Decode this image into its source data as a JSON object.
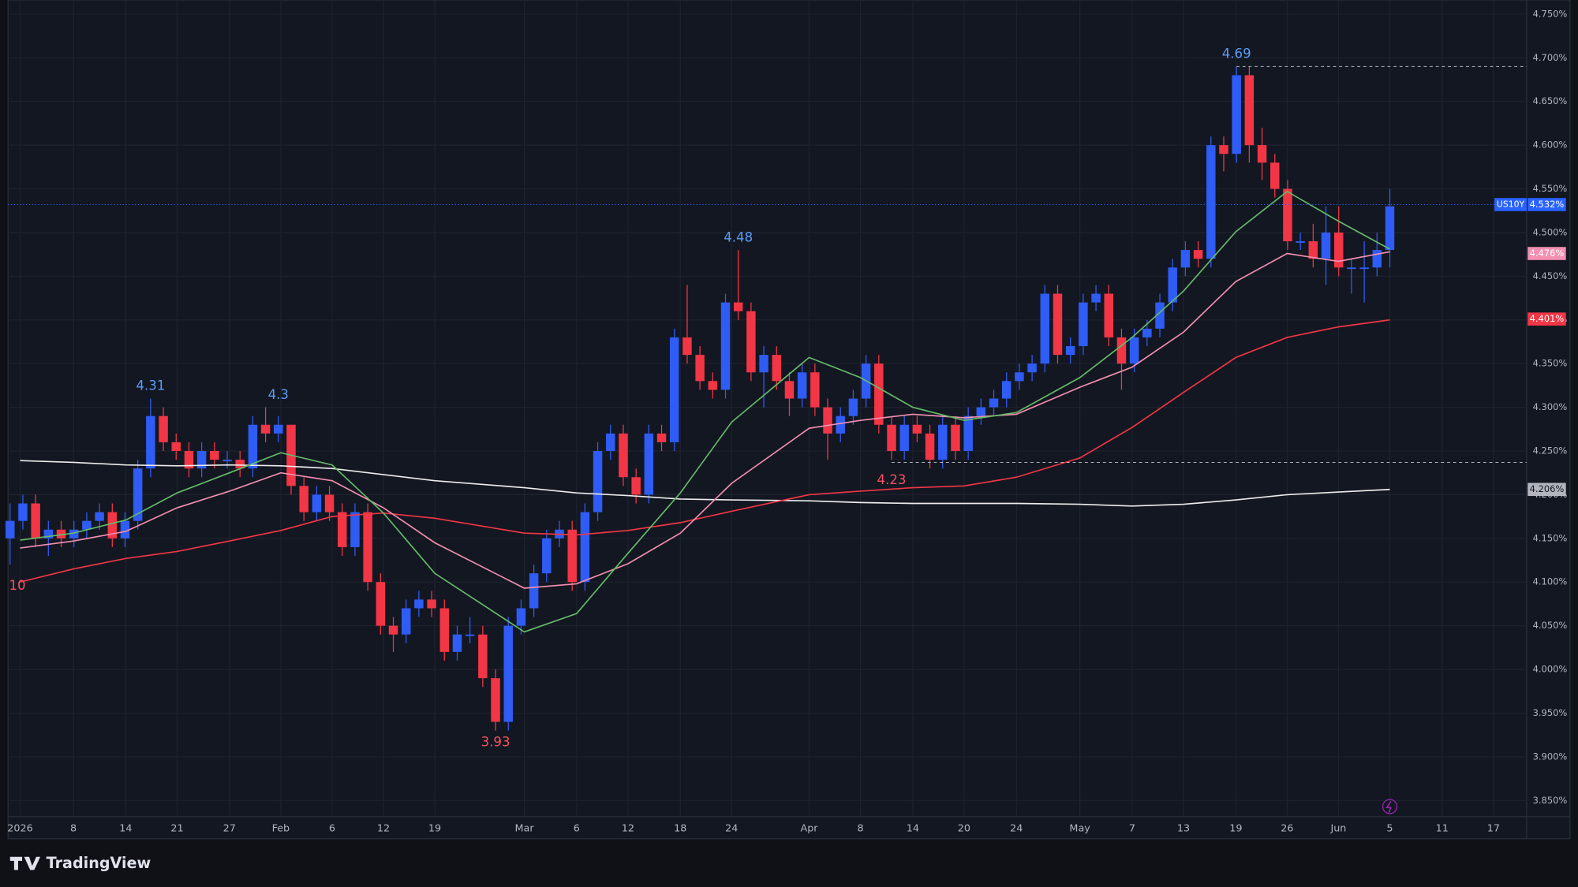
{
  "chart_data": {
    "type": "candlestick",
    "symbol": "US10Y",
    "brand": "TradingView",
    "categories": [
      "2026",
      "8",
      "14",
      "21",
      "27",
      "Feb",
      "6",
      "12",
      "19",
      "Mar",
      "6",
      "12",
      "18",
      "24",
      "Apr",
      "8",
      "14",
      "20",
      "24",
      "May",
      "7",
      "13",
      "19",
      "26",
      "Jun",
      "5",
      "11",
      "17"
    ],
    "ylim": [
      3.85,
      4.75
    ],
    "yticks": [
      {
        "value": 3.85,
        "label": "3.850%"
      },
      {
        "value": 3.9,
        "label": "3.900%"
      },
      {
        "value": 3.95,
        "label": "3.950%"
      },
      {
        "value": 4.0,
        "label": "4.000%"
      },
      {
        "value": 4.05,
        "label": "4.050%"
      },
      {
        "value": 4.1,
        "label": "4.100%"
      },
      {
        "value": 4.15,
        "label": "4.150%"
      },
      {
        "value": 4.2,
        "label": "4.200%"
      },
      {
        "value": 4.25,
        "label": "4.250%"
      },
      {
        "value": 4.3,
        "label": "4.300%"
      },
      {
        "value": 4.35,
        "label": "4.350%"
      },
      {
        "value": 4.4,
        "label": "4.400%"
      },
      {
        "value": 4.45,
        "label": "4.450%"
      },
      {
        "value": 4.5,
        "label": "4.500%"
      },
      {
        "value": 4.55,
        "label": "4.550%"
      },
      {
        "value": 4.6,
        "label": "4.600%"
      },
      {
        "value": 4.65,
        "label": "4.650%"
      },
      {
        "value": 4.7,
        "label": "4.700%"
      },
      {
        "value": 4.75,
        "label": "4.750%"
      }
    ],
    "grid": true,
    "up_color": "#2f5cf5",
    "down_color": "#f23645",
    "ohlc": [
      [
        4.15,
        4.19,
        4.12,
        4.17
      ],
      [
        4.17,
        4.2,
        4.16,
        4.19
      ],
      [
        4.19,
        4.2,
        4.14,
        4.15
      ],
      [
        4.15,
        4.17,
        4.13,
        4.16
      ],
      [
        4.16,
        4.17,
        4.14,
        4.15
      ],
      [
        4.15,
        4.17,
        4.14,
        4.16
      ],
      [
        4.16,
        4.18,
        4.15,
        4.17
      ],
      [
        4.17,
        4.19,
        4.16,
        4.18
      ],
      [
        4.18,
        4.19,
        4.14,
        4.15
      ],
      [
        4.15,
        4.18,
        4.14,
        4.17
      ],
      [
        4.17,
        4.24,
        4.16,
        4.23
      ],
      [
        4.23,
        4.31,
        4.22,
        4.29
      ],
      [
        4.29,
        4.3,
        4.25,
        4.26
      ],
      [
        4.26,
        4.27,
        4.24,
        4.25
      ],
      [
        4.25,
        4.26,
        4.22,
        4.23
      ],
      [
        4.23,
        4.26,
        4.22,
        4.25
      ],
      [
        4.25,
        4.26,
        4.23,
        4.24
      ],
      [
        4.24,
        4.25,
        4.23,
        4.24
      ],
      [
        4.24,
        4.25,
        4.22,
        4.23
      ],
      [
        4.23,
        4.29,
        4.22,
        4.28
      ],
      [
        4.28,
        4.3,
        4.26,
        4.27
      ],
      [
        4.27,
        4.29,
        4.26,
        4.28
      ],
      [
        4.28,
        4.28,
        4.2,
        4.21
      ],
      [
        4.21,
        4.22,
        4.17,
        4.18
      ],
      [
        4.18,
        4.21,
        4.17,
        4.2
      ],
      [
        4.2,
        4.21,
        4.17,
        4.18
      ],
      [
        4.18,
        4.19,
        4.13,
        4.14
      ],
      [
        4.14,
        4.19,
        4.13,
        4.18
      ],
      [
        4.18,
        4.19,
        4.09,
        4.1
      ],
      [
        4.1,
        4.11,
        4.04,
        4.05
      ],
      [
        4.05,
        4.06,
        4.02,
        4.04
      ],
      [
        4.04,
        4.08,
        4.03,
        4.07
      ],
      [
        4.07,
        4.09,
        4.06,
        4.08
      ],
      [
        4.08,
        4.09,
        4.06,
        4.07
      ],
      [
        4.07,
        4.08,
        4.01,
        4.02
      ],
      [
        4.02,
        4.05,
        4.01,
        4.04
      ],
      [
        4.04,
        4.06,
        4.03,
        4.04
      ],
      [
        4.04,
        4.05,
        3.98,
        3.99
      ],
      [
        3.99,
        4.0,
        3.93,
        3.94
      ],
      [
        3.94,
        4.06,
        3.93,
        4.05
      ],
      [
        4.05,
        4.08,
        4.04,
        4.07
      ],
      [
        4.07,
        4.12,
        4.06,
        4.11
      ],
      [
        4.11,
        4.16,
        4.1,
        4.15
      ],
      [
        4.15,
        4.17,
        4.14,
        4.16
      ],
      [
        4.16,
        4.17,
        4.09,
        4.1
      ],
      [
        4.1,
        4.19,
        4.09,
        4.18
      ],
      [
        4.18,
        4.26,
        4.17,
        4.25
      ],
      [
        4.25,
        4.28,
        4.24,
        4.27
      ],
      [
        4.27,
        4.28,
        4.21,
        4.22
      ],
      [
        4.22,
        4.23,
        4.19,
        4.2
      ],
      [
        4.2,
        4.28,
        4.19,
        4.27
      ],
      [
        4.27,
        4.28,
        4.25,
        4.26
      ],
      [
        4.26,
        4.39,
        4.25,
        4.38
      ],
      [
        4.38,
        4.44,
        4.35,
        4.36
      ],
      [
        4.36,
        4.37,
        4.32,
        4.33
      ],
      [
        4.33,
        4.34,
        4.31,
        4.32
      ],
      [
        4.32,
        4.43,
        4.31,
        4.42
      ],
      [
        4.42,
        4.48,
        4.4,
        4.41
      ],
      [
        4.41,
        4.42,
        4.33,
        4.34
      ],
      [
        4.34,
        4.37,
        4.3,
        4.36
      ],
      [
        4.36,
        4.37,
        4.32,
        4.33
      ],
      [
        4.33,
        4.34,
        4.29,
        4.31
      ],
      [
        4.31,
        4.35,
        4.3,
        4.34
      ],
      [
        4.34,
        4.35,
        4.29,
        4.3
      ],
      [
        4.3,
        4.31,
        4.24,
        4.27
      ],
      [
        4.27,
        4.3,
        4.26,
        4.29
      ],
      [
        4.29,
        4.32,
        4.28,
        4.31
      ],
      [
        4.31,
        4.36,
        4.3,
        4.35
      ],
      [
        4.35,
        4.36,
        4.27,
        4.28
      ],
      [
        4.28,
        4.29,
        4.24,
        4.25
      ],
      [
        4.25,
        4.29,
        4.24,
        4.28
      ],
      [
        4.28,
        4.29,
        4.26,
        4.27
      ],
      [
        4.27,
        4.28,
        4.23,
        4.24
      ],
      [
        4.24,
        4.29,
        4.23,
        4.28
      ],
      [
        4.28,
        4.29,
        4.24,
        4.25
      ],
      [
        4.25,
        4.3,
        4.24,
        4.29
      ],
      [
        4.29,
        4.31,
        4.28,
        4.3
      ],
      [
        4.3,
        4.32,
        4.29,
        4.31
      ],
      [
        4.31,
        4.34,
        4.3,
        4.33
      ],
      [
        4.33,
        4.35,
        4.32,
        4.34
      ],
      [
        4.34,
        4.36,
        4.33,
        4.35
      ],
      [
        4.35,
        4.44,
        4.34,
        4.43
      ],
      [
        4.43,
        4.44,
        4.35,
        4.36
      ],
      [
        4.36,
        4.38,
        4.35,
        4.37
      ],
      [
        4.37,
        4.43,
        4.36,
        4.42
      ],
      [
        4.42,
        4.44,
        4.41,
        4.43
      ],
      [
        4.43,
        4.44,
        4.37,
        4.38
      ],
      [
        4.38,
        4.39,
        4.32,
        4.35
      ],
      [
        4.35,
        4.39,
        4.34,
        4.38
      ],
      [
        4.38,
        4.4,
        4.37,
        4.39
      ],
      [
        4.39,
        4.43,
        4.38,
        4.42
      ],
      [
        4.42,
        4.47,
        4.41,
        4.46
      ],
      [
        4.46,
        4.49,
        4.45,
        4.48
      ],
      [
        4.48,
        4.49,
        4.46,
        4.47
      ],
      [
        4.47,
        4.61,
        4.46,
        4.6
      ],
      [
        4.6,
        4.61,
        4.57,
        4.59
      ],
      [
        4.59,
        4.69,
        4.58,
        4.68
      ],
      [
        4.68,
        4.69,
        4.58,
        4.6
      ],
      [
        4.6,
        4.62,
        4.56,
        4.58
      ],
      [
        4.58,
        4.59,
        4.54,
        4.55
      ],
      [
        4.55,
        4.56,
        4.48,
        4.49
      ],
      [
        4.49,
        4.5,
        4.48,
        4.49
      ],
      [
        4.49,
        4.51,
        4.46,
        4.47
      ],
      [
        4.47,
        4.53,
        4.44,
        4.5
      ],
      [
        4.5,
        4.53,
        4.45,
        4.46
      ],
      [
        4.46,
        4.47,
        4.43,
        4.46
      ],
      [
        4.46,
        4.49,
        4.42,
        4.46
      ],
      [
        4.46,
        4.5,
        4.45,
        4.48
      ],
      [
        4.48,
        4.55,
        4.46,
        4.53
      ]
    ],
    "series": [
      {
        "color": "#ececec",
        "values": [
          4.239,
          4.237,
          4.234,
          4.233,
          4.234,
          4.233,
          4.23,
          4.223,
          4.216,
          4.208,
          4.202,
          4.199,
          4.195,
          4.194,
          4.193,
          4.191,
          4.19,
          4.19,
          4.19,
          4.189,
          4.187,
          4.189,
          4.194,
          4.2,
          4.203,
          4.206,
          null,
          null
        ]
      },
      {
        "color": "#f23645",
        "values": [
          4.1,
          4.115,
          4.127,
          4.135,
          4.147,
          4.159,
          4.175,
          4.179,
          4.173,
          4.156,
          4.154,
          4.159,
          4.168,
          4.181,
          4.2,
          4.204,
          4.208,
          4.21,
          4.22,
          4.242,
          4.277,
          4.317,
          4.357,
          4.38,
          4.392,
          4.4,
          null,
          null
        ]
      },
      {
        "color": "#f48fb1",
        "values": [
          4.139,
          4.147,
          4.158,
          4.185,
          4.204,
          4.225,
          4.216,
          4.185,
          4.145,
          4.093,
          4.098,
          4.121,
          4.156,
          4.213,
          4.276,
          4.285,
          4.292,
          4.288,
          4.292,
          4.323,
          4.346,
          4.386,
          4.444,
          4.476,
          4.467,
          4.478,
          null,
          null
        ]
      },
      {
        "color": "#66bb6a",
        "values": [
          4.148,
          4.156,
          4.171,
          4.202,
          4.225,
          4.248,
          4.234,
          4.179,
          4.11,
          4.043,
          4.064,
          4.133,
          4.202,
          4.283,
          4.357,
          4.334,
          4.3,
          4.285,
          4.294,
          4.334,
          4.38,
          4.433,
          4.501,
          4.547,
          4.513,
          4.481,
          null,
          null
        ]
      }
    ],
    "extremes": [
      4.31,
      4.3,
      3.93,
      4.48,
      4.23,
      4.69
    ],
    "edge_label": "10",
    "last": {
      "value": 4.532,
      "label": "4.532%"
    },
    "ma_badges": [
      {
        "value": 4.476,
        "label": "4.476%",
        "color": "#f48fb1"
      },
      {
        "value": 4.401,
        "label": "4.401%",
        "color": "#f23645"
      },
      {
        "value": 4.206,
        "label": "4.206%",
        "color": "#b2b5be"
      }
    ]
  }
}
